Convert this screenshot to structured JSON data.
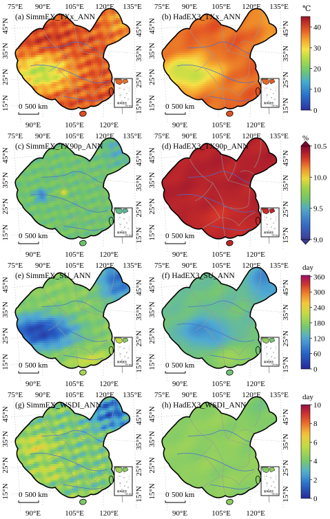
{
  "rows": [
    {
      "panels": [
        {
          "label": "(a) SimmEX_TXx_ANN",
          "scale": "temp",
          "field": "simm_txx"
        },
        {
          "label": "(b) HadEX3_TXx_ANN",
          "scale": "temp",
          "field": "had_txx"
        }
      ],
      "colorbar": {
        "unit": "℃",
        "ticks": [
          "0",
          "10",
          "20",
          "30",
          "40"
        ],
        "min": 0,
        "max": 45,
        "tick_values": [
          0,
          10,
          20,
          30,
          40
        ],
        "ends": "rect"
      }
    },
    {
      "panels": [
        {
          "label": "(c) SimmEX_TX90p_ANN",
          "scale": "pct",
          "field": "simm_tx90p"
        },
        {
          "label": "(d) HadEX3_TX90p_ANN",
          "scale": "pct",
          "field": "had_tx90p"
        }
      ],
      "colorbar": {
        "unit": "%",
        "ticks": [
          "9.0",
          "9.5",
          "10.0",
          "10.5"
        ],
        "min": 9.0,
        "max": 10.5,
        "tick_values": [
          9.0,
          9.5,
          10.0,
          10.5
        ],
        "ends": "arrows"
      }
    },
    {
      "panels": [
        {
          "label": "(e) SimmEX_SU_ANN",
          "scale": "su",
          "field": "simm_su"
        },
        {
          "label": "(f) HadEX3_SU_ANN",
          "scale": "su",
          "field": "had_su"
        }
      ],
      "colorbar": {
        "unit": "day",
        "ticks": [
          "0",
          "60",
          "120",
          "180",
          "240",
          "300",
          "360"
        ],
        "min": 0,
        "max": 365,
        "tick_values": [
          0,
          60,
          120,
          180,
          240,
          300,
          360
        ],
        "ends": "rect"
      }
    },
    {
      "panels": [
        {
          "label": "(g) SimmEX_WSDI_ANN",
          "scale": "wsdi",
          "field": "simm_wsdi"
        },
        {
          "label": "(h) HadEX3_WSDI_ANN",
          "scale": "wsdi",
          "field": "had_wsdi"
        }
      ],
      "colorbar": {
        "unit": "day",
        "ticks": [
          "0",
          "2",
          "4",
          "6",
          "8",
          "10"
        ],
        "min": 0,
        "max": 10,
        "tick_values": [
          0,
          2,
          4,
          6,
          8,
          10
        ],
        "ends": "rect"
      }
    }
  ],
  "lon_top": [
    "75°E",
    "90°E",
    "105°E",
    "120°E",
    "135°E"
  ],
  "lon_bottom": [
    "90°E",
    "105°E",
    "120°E"
  ],
  "lat_left": [
    "45°N",
    "35°N",
    "25°N",
    "15°N"
  ],
  "lat_right": [
    "45°N",
    "35°N",
    "25°N",
    "15°N"
  ],
  "scalebar": "500 km",
  "scalebar_zero": "0",
  "inset_title": "南海诸岛",
  "inset_scale": "500 km",
  "colors": {
    "border": "#000000",
    "province": "#9a9a9a",
    "graticule": "#c8c8c8",
    "river": "#4a6fd0"
  }
}
